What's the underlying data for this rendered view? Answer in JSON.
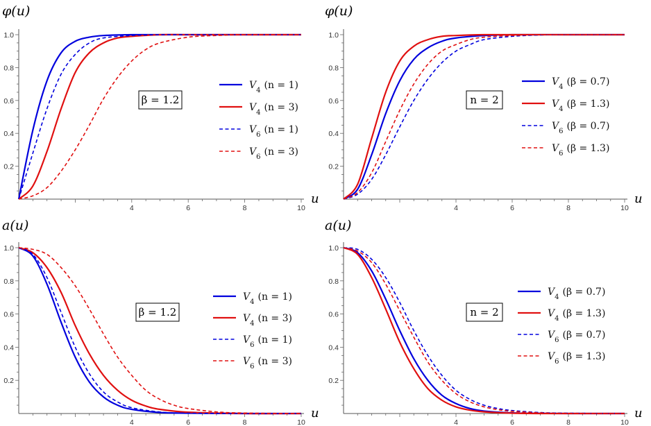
{
  "chart_data": [
    {
      "type": "line",
      "ylabel": "φ(u)",
      "xlabel": "u",
      "xlim": [
        0,
        10
      ],
      "ylim": [
        0,
        1.0
      ],
      "x_ticks": [
        "4",
        "6",
        "8",
        "10"
      ],
      "y_ticks": [
        "0.2",
        "0.4",
        "0.6",
        "0.8",
        "1.0"
      ],
      "annotation": "β = 1.2",
      "legend_position": "right",
      "series": [
        {
          "name": "V4 (n = 1)",
          "color": "#0000dd",
          "dash": "solid",
          "x": [
            0,
            0.5,
            1,
            1.5,
            2,
            2.5,
            3,
            4,
            5,
            6,
            8,
            10
          ],
          "values": [
            0,
            0.42,
            0.72,
            0.89,
            0.96,
            0.985,
            0.995,
            1,
            1,
            1,
            1,
            1
          ]
        },
        {
          "name": "V4 (n = 3)",
          "color": "#e01010",
          "dash": "solid",
          "x": [
            0,
            0.5,
            1,
            1.5,
            2,
            2.5,
            3,
            3.5,
            4,
            5,
            6,
            8,
            10
          ],
          "values": [
            0,
            0.08,
            0.29,
            0.55,
            0.77,
            0.89,
            0.95,
            0.98,
            0.99,
            1,
            1,
            1,
            1
          ]
        },
        {
          "name": "V6 (n = 1)",
          "color": "#0000dd",
          "dash": "dashed",
          "x": [
            0,
            0.5,
            1,
            1.5,
            2,
            2.5,
            3,
            4,
            5,
            6,
            8,
            10
          ],
          "values": [
            0,
            0.28,
            0.55,
            0.76,
            0.88,
            0.95,
            0.98,
            0.995,
            1,
            1,
            1,
            1
          ]
        },
        {
          "name": "V6 (n = 3)",
          "color": "#e01010",
          "dash": "dashed",
          "x": [
            0,
            0.5,
            1,
            1.5,
            2,
            2.5,
            3,
            3.5,
            4,
            4.5,
            5,
            6,
            7,
            8,
            10
          ],
          "values": [
            0,
            0.02,
            0.07,
            0.17,
            0.3,
            0.45,
            0.61,
            0.74,
            0.84,
            0.91,
            0.95,
            0.985,
            0.995,
            1,
            1
          ]
        }
      ]
    },
    {
      "type": "line",
      "ylabel": "φ(u)",
      "xlabel": "u",
      "xlim": [
        0,
        10
      ],
      "ylim": [
        0,
        1.0
      ],
      "x_ticks": [
        "4",
        "6",
        "8",
        "10"
      ],
      "y_ticks": [
        "0.2",
        "0.4",
        "0.6",
        "0.8",
        "1.0"
      ],
      "annotation": "n = 2",
      "legend_position": "right",
      "series": [
        {
          "name": "V4 (β = 0.7)",
          "color": "#0000dd",
          "dash": "solid",
          "x": [
            0,
            0.5,
            1,
            1.5,
            2,
            2.5,
            3,
            3.5,
            4,
            5,
            6,
            8,
            10
          ],
          "values": [
            0,
            0.06,
            0.27,
            0.52,
            0.72,
            0.85,
            0.92,
            0.96,
            0.98,
            0.995,
            1,
            1,
            1
          ]
        },
        {
          "name": "V4 (β = 1.3)",
          "color": "#e01010",
          "dash": "solid",
          "x": [
            0,
            0.5,
            1,
            1.5,
            2,
            2.5,
            3,
            3.5,
            4,
            5,
            6,
            8,
            10
          ],
          "values": [
            0,
            0.09,
            0.37,
            0.65,
            0.84,
            0.93,
            0.97,
            0.99,
            0.995,
            1,
            1,
            1,
            1
          ]
        },
        {
          "name": "V6 (β = 0.7)",
          "color": "#0000dd",
          "dash": "dashed",
          "x": [
            0,
            0.5,
            1,
            1.5,
            2,
            2.5,
            3,
            3.5,
            4,
            4.5,
            5,
            6,
            7,
            8,
            10
          ],
          "values": [
            0,
            0.03,
            0.12,
            0.27,
            0.44,
            0.6,
            0.73,
            0.83,
            0.9,
            0.94,
            0.97,
            0.99,
            0.998,
            1,
            1
          ]
        },
        {
          "name": "V6 (β = 1.3)",
          "color": "#e01010",
          "dash": "dashed",
          "x": [
            0,
            0.5,
            1,
            1.5,
            2,
            2.5,
            3,
            3.5,
            4,
            4.5,
            5,
            6,
            7,
            8,
            10
          ],
          "values": [
            0,
            0.04,
            0.16,
            0.35,
            0.54,
            0.7,
            0.82,
            0.9,
            0.94,
            0.97,
            0.985,
            0.995,
            1,
            1,
            1
          ]
        }
      ]
    },
    {
      "type": "line",
      "ylabel": "a(u)",
      "xlabel": "u",
      "xlim": [
        0,
        10
      ],
      "ylim": [
        0,
        1.0
      ],
      "x_ticks": [
        "4",
        "6",
        "8",
        "10"
      ],
      "y_ticks": [
        "0.2",
        "0.4",
        "0.6",
        "0.8",
        "1.0"
      ],
      "annotation": "β = 1.2",
      "legend_position": "right",
      "series": [
        {
          "name": "V4 (n = 1)",
          "color": "#0000dd",
          "dash": "solid",
          "x": [
            0,
            0.5,
            1,
            1.5,
            2,
            2.5,
            3,
            3.5,
            4,
            5,
            6,
            8,
            10
          ],
          "values": [
            1,
            0.95,
            0.78,
            0.55,
            0.34,
            0.19,
            0.1,
            0.05,
            0.025,
            0.006,
            0.002,
            0,
            0
          ]
        },
        {
          "name": "V4 (n = 3)",
          "color": "#e01010",
          "dash": "solid",
          "x": [
            0,
            0.5,
            1,
            1.5,
            2,
            2.5,
            3,
            3.5,
            4,
            4.5,
            5,
            6,
            8,
            10
          ],
          "values": [
            1,
            0.97,
            0.88,
            0.73,
            0.53,
            0.36,
            0.23,
            0.14,
            0.08,
            0.045,
            0.025,
            0.008,
            0,
            0
          ]
        },
        {
          "name": "V6 (n = 1)",
          "color": "#0000dd",
          "dash": "dashed",
          "x": [
            0,
            0.5,
            1,
            1.5,
            2,
            2.5,
            3,
            3.5,
            4,
            5,
            6,
            8,
            10
          ],
          "values": [
            1,
            0.96,
            0.82,
            0.61,
            0.4,
            0.24,
            0.13,
            0.07,
            0.035,
            0.009,
            0.002,
            0,
            0
          ]
        },
        {
          "name": "V6 (n = 3)",
          "color": "#e01010",
          "dash": "dashed",
          "x": [
            0,
            0.5,
            1,
            1.5,
            2,
            2.5,
            3,
            3.5,
            4,
            4.5,
            5,
            5.5,
            6,
            7,
            8,
            10
          ],
          "values": [
            1,
            0.99,
            0.96,
            0.88,
            0.77,
            0.63,
            0.48,
            0.34,
            0.23,
            0.14,
            0.085,
            0.05,
            0.03,
            0.01,
            0.003,
            0
          ]
        }
      ]
    },
    {
      "type": "line",
      "ylabel": "a(u)",
      "xlabel": "u",
      "xlim": [
        0,
        10
      ],
      "ylim": [
        0,
        1.0
      ],
      "x_ticks": [
        "4",
        "6",
        "8",
        "10"
      ],
      "y_ticks": [
        "0.2",
        "0.4",
        "0.6",
        "0.8",
        "1.0"
      ],
      "annotation": "n = 2",
      "legend_position": "right",
      "series": [
        {
          "name": "V4 (β = 0.7)",
          "color": "#0000dd",
          "dash": "solid",
          "x": [
            0,
            0.5,
            1,
            1.5,
            2,
            2.5,
            3,
            3.5,
            4,
            4.5,
            5,
            6,
            7,
            8,
            10
          ],
          "values": [
            1,
            0.97,
            0.86,
            0.69,
            0.5,
            0.33,
            0.2,
            0.11,
            0.06,
            0.03,
            0.015,
            0.004,
            0.001,
            0,
            0
          ]
        },
        {
          "name": "V4 (β = 1.3)",
          "color": "#e01010",
          "dash": "solid",
          "x": [
            0,
            0.5,
            1,
            1.5,
            2,
            2.5,
            3,
            3.5,
            4,
            4.5,
            5,
            6,
            7,
            8,
            10
          ],
          "values": [
            1,
            0.96,
            0.82,
            0.63,
            0.43,
            0.27,
            0.15,
            0.08,
            0.04,
            0.02,
            0.01,
            0.002,
            0,
            0,
            0
          ]
        },
        {
          "name": "V6 (β = 0.7)",
          "color": "#0000dd",
          "dash": "dashed",
          "x": [
            0,
            0.5,
            1,
            1.5,
            2,
            2.5,
            3,
            3.5,
            4,
            4.5,
            5,
            5.5,
            6,
            7,
            8,
            10
          ],
          "values": [
            1,
            0.99,
            0.93,
            0.82,
            0.67,
            0.5,
            0.35,
            0.23,
            0.14,
            0.085,
            0.05,
            0.03,
            0.018,
            0.006,
            0.002,
            0
          ]
        },
        {
          "name": "V6 (β = 1.3)",
          "color": "#e01010",
          "dash": "dashed",
          "x": [
            0,
            0.5,
            1,
            1.5,
            2,
            2.5,
            3,
            3.5,
            4,
            4.5,
            5,
            5.5,
            6,
            7,
            8,
            10
          ],
          "values": [
            1,
            0.98,
            0.91,
            0.78,
            0.62,
            0.46,
            0.31,
            0.2,
            0.12,
            0.07,
            0.04,
            0.023,
            0.013,
            0.004,
            0.001,
            0
          ]
        }
      ]
    }
  ]
}
